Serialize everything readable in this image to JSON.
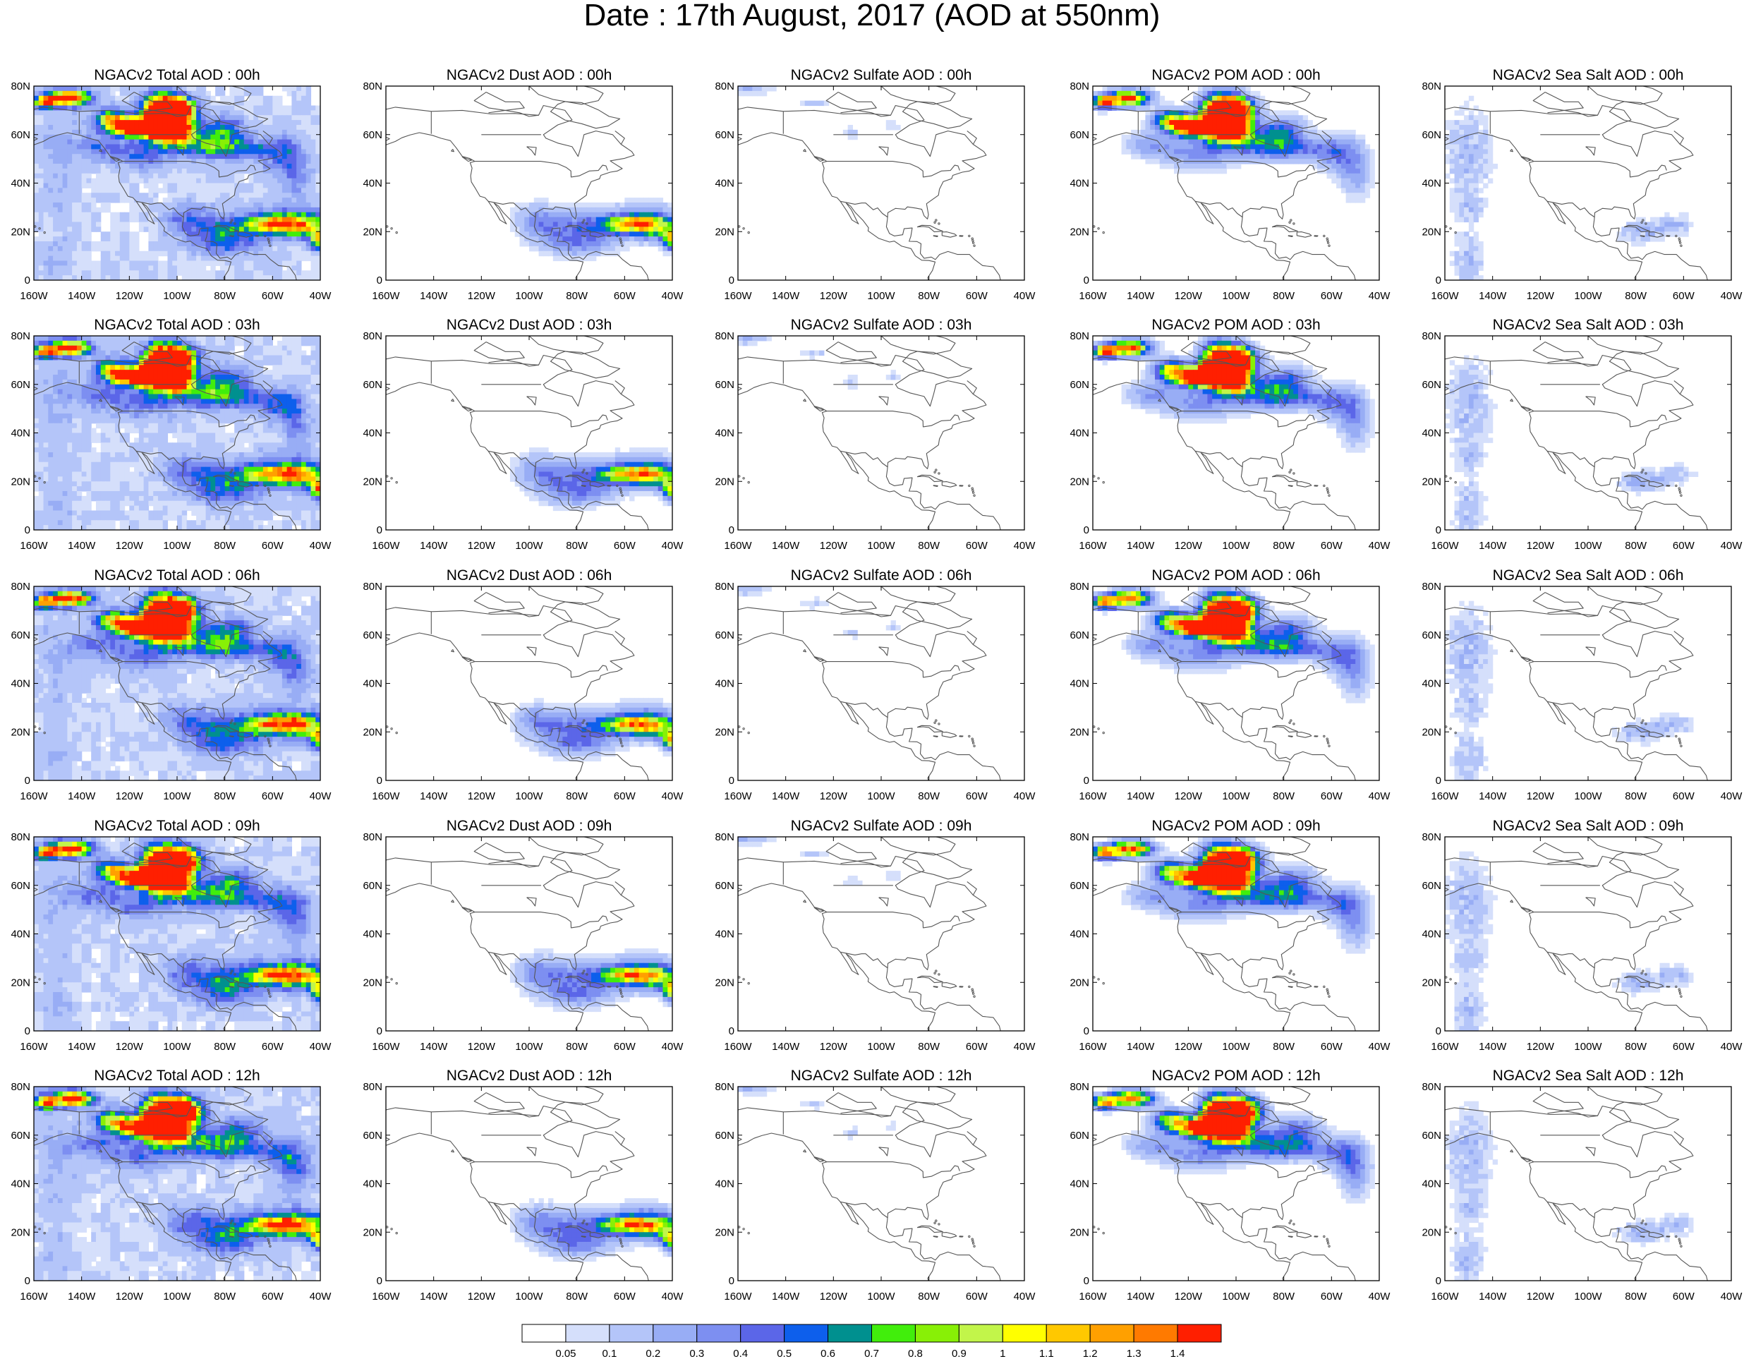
{
  "figure": {
    "title": "Date : 17th August, 2017 (AOD at 550nm)"
  },
  "axes": {
    "lat_labels": [
      "80N",
      "60N",
      "40N",
      "20N",
      "0"
    ],
    "lon_labels": [
      "160W",
      "140W",
      "120W",
      "100W",
      "80W",
      "60W",
      "40W"
    ],
    "lon_range": [
      -160,
      -40
    ],
    "lat_range": [
      0,
      80
    ]
  },
  "panels": [
    [
      "NGACv2 Total AOD : 00h",
      "NGACv2 Dust AOD : 00h",
      "NGACv2 Sulfate AOD : 00h",
      "NGACv2 POM AOD : 00h",
      "NGACv2 Sea Salt AOD : 00h"
    ],
    [
      "NGACv2 Total AOD : 03h",
      "NGACv2 Dust AOD : 03h",
      "NGACv2 Sulfate AOD : 03h",
      "NGACv2 POM AOD : 03h",
      "NGACv2 Sea Salt AOD : 03h"
    ],
    [
      "NGACv2 Total AOD : 06h",
      "NGACv2 Dust AOD : 06h",
      "NGACv2 Sulfate AOD : 06h",
      "NGACv2 POM AOD : 06h",
      "NGACv2 Sea Salt AOD : 06h"
    ],
    [
      "NGACv2 Total AOD : 09h",
      "NGACv2 Dust AOD : 09h",
      "NGACv2 Sulfate AOD : 09h",
      "NGACv2 POM AOD : 09h",
      "NGACv2 Sea Salt  AOD : 09h"
    ],
    [
      "NGACv2 Total AOD  : 12h",
      "NGACv2 Dust AOD : 12h",
      "NGACv2 Sulfate AOD : 12h",
      "NGACv2 POM  AOD : 12h",
      "NGACv2 Sea Salt  AOD : 12h"
    ]
  ],
  "colorbar": {
    "levels": [
      "0.05",
      "0.1",
      "0.2",
      "0.3",
      "0.4",
      "0.5",
      "0.6",
      "0.7",
      "0.8",
      "0.9",
      "1",
      "1.1",
      "1.2",
      "1.3",
      "1.4"
    ],
    "colors": [
      "#ffffff",
      "#d5dffb",
      "#b4c5f9",
      "#98adf5",
      "#7d8ff1",
      "#5b66e8",
      "#0d5fec",
      "#00908f",
      "#41ee0c",
      "#88f006",
      "#c2f54a",
      "#ffff00",
      "#ffc800",
      "#ffa000",
      "#ff7a00",
      "#ff1f00"
    ]
  }
}
